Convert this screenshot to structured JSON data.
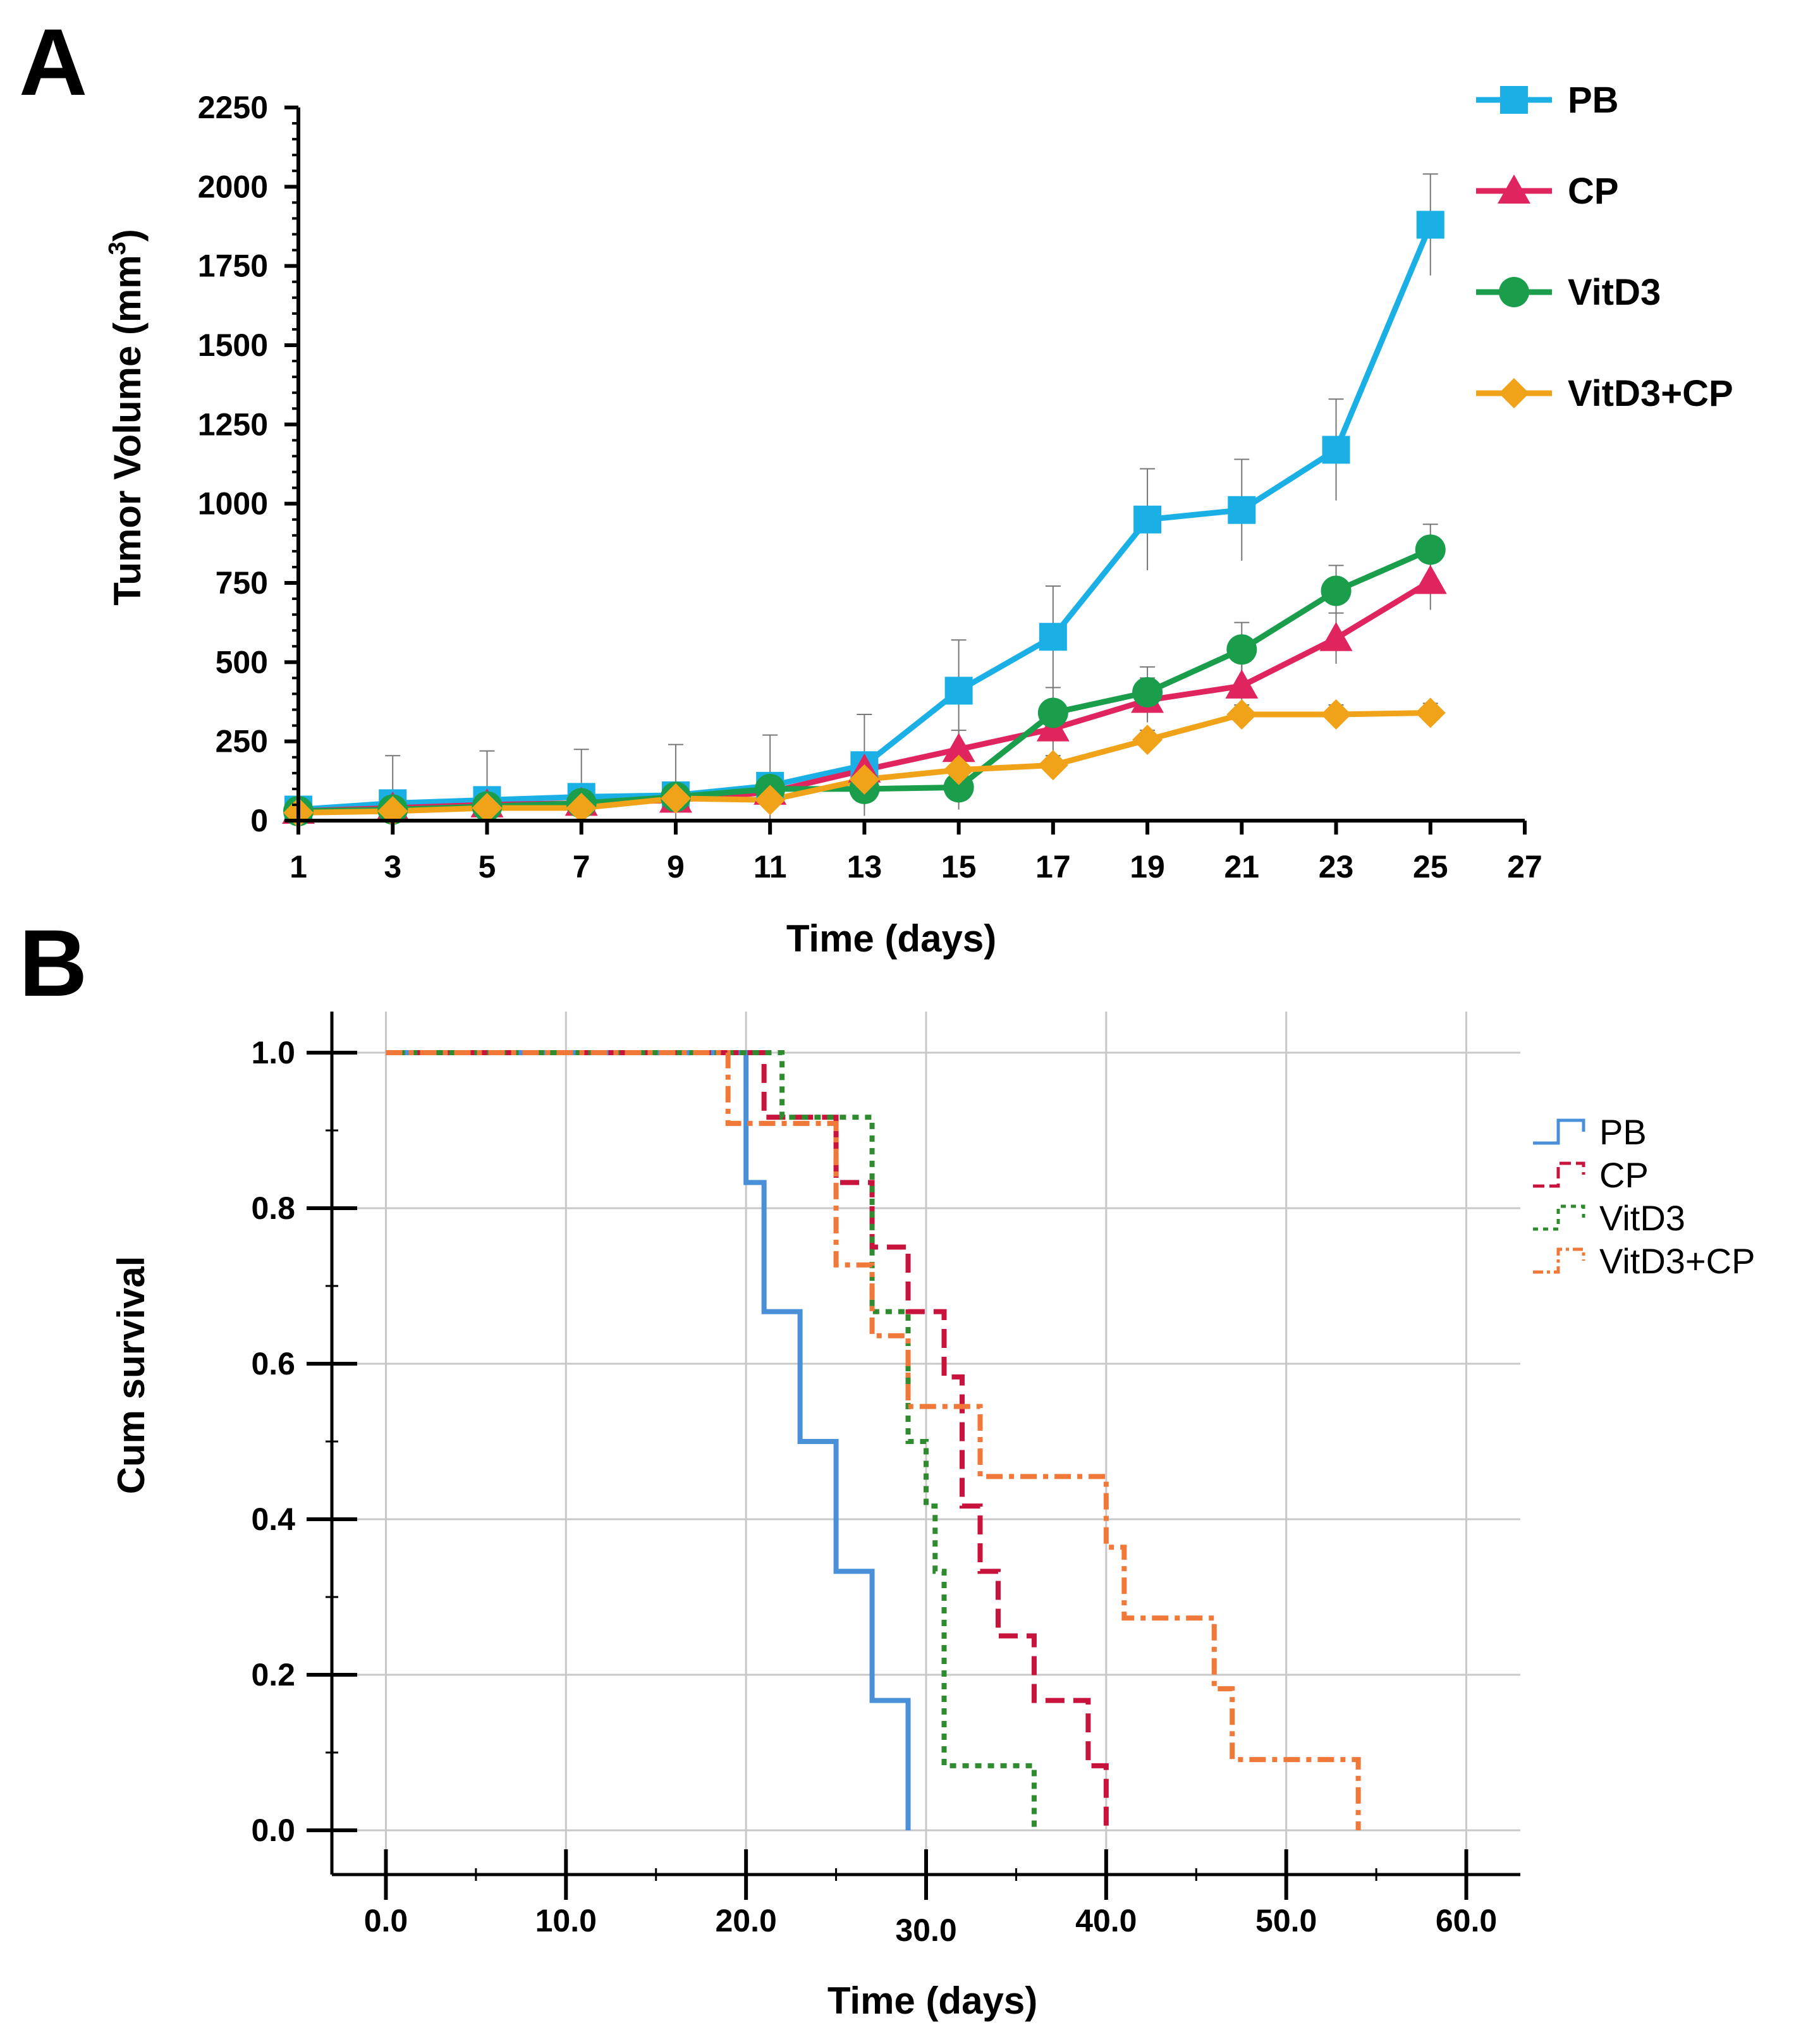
{
  "chart_data": [
    {
      "panel": "A",
      "type": "line",
      "ylabel": "Tumor Volume (mm",
      "ylabel_sup": "3",
      "ylabel_close": ")",
      "xlabel": "Time (days)",
      "ylim": [
        0,
        2250
      ],
      "xlim": [
        1,
        27
      ],
      "yticks": [
        0,
        250,
        500,
        750,
        1000,
        1250,
        1500,
        1750,
        2000,
        2250
      ],
      "xticks": [
        1,
        3,
        5,
        7,
        9,
        11,
        13,
        15,
        17,
        19,
        21,
        23,
        25,
        27
      ],
      "x": [
        1,
        3,
        5,
        7,
        9,
        11,
        13,
        15,
        17,
        19,
        21,
        23,
        25
      ],
      "series": [
        {
          "name": "PB",
          "color": "#1ab0e6",
          "marker": "square",
          "values": [
            35,
            55,
            65,
            75,
            80,
            110,
            175,
            410,
            580,
            950,
            980,
            1170,
            1880
          ],
          "errors": [
            10,
            150,
            155,
            150,
            160,
            160,
            160,
            160,
            160,
            160,
            160,
            160,
            160
          ]
        },
        {
          "name": "CP",
          "color": "#e0245e",
          "marker": "triangle",
          "values": [
            30,
            40,
            50,
            55,
            65,
            90,
            160,
            225,
            290,
            380,
            425,
            575,
            755
          ],
          "errors": [
            5,
            20,
            25,
            30,
            40,
            40,
            50,
            60,
            70,
            70,
            75,
            80,
            90
          ]
        },
        {
          "name": "VitD3",
          "color": "#1a9e4c",
          "marker": "circle",
          "values": [
            30,
            35,
            45,
            55,
            75,
            100,
            100,
            105,
            340,
            405,
            540,
            725,
            855
          ],
          "errors": [
            5,
            15,
            20,
            25,
            30,
            40,
            60,
            70,
            80,
            80,
            85,
            80,
            80
          ]
        },
        {
          "name": "VitD3+CP",
          "color": "#f0a318",
          "marker": "diamond",
          "values": [
            25,
            30,
            40,
            40,
            70,
            65,
            130,
            160,
            175,
            255,
            335,
            335,
            340
          ],
          "errors": [
            5,
            10,
            15,
            20,
            20,
            30,
            30,
            30,
            30,
            30,
            30,
            30,
            30
          ]
        }
      ]
    },
    {
      "panel": "B",
      "type": "line",
      "subtype": "kaplan-meier-step",
      "ylabel": "Cum survival",
      "xlabel": "Time (days)",
      "ylim": [
        0,
        1.0
      ],
      "xlim": [
        -3,
        63
      ],
      "yticks": [
        0.0,
        0.2,
        0.4,
        0.6,
        0.8,
        1.0
      ],
      "ytick_labels": [
        "0.0",
        "0.2",
        "0.4",
        "0.6",
        "0.8",
        "1.0"
      ],
      "xticks": [
        0,
        10,
        20,
        30,
        40,
        50,
        60
      ],
      "xtick_labels": [
        "0.0",
        "10.0",
        "20.0",
        "30.0",
        "40.0",
        "50.0",
        "60.0"
      ],
      "series": [
        {
          "name": "PB",
          "color": "#4a90d9",
          "dash": "solid",
          "steps": [
            [
              0,
              1.0
            ],
            [
              20,
              0.833
            ],
            [
              21,
              0.667
            ],
            [
              23,
              0.5
            ],
            [
              25,
              0.333
            ],
            [
              27,
              0.167
            ],
            [
              29,
              0.0
            ]
          ]
        },
        {
          "name": "CP",
          "color": "#c8143c",
          "dash": "dash",
          "steps": [
            [
              0,
              1.0
            ],
            [
              21,
              0.917
            ],
            [
              25,
              0.833
            ],
            [
              27,
              0.75
            ],
            [
              29,
              0.667
            ],
            [
              31,
              0.583
            ],
            [
              32,
              0.417
            ],
            [
              33,
              0.333
            ],
            [
              34,
              0.25
            ],
            [
              36,
              0.167
            ],
            [
              39,
              0.083
            ],
            [
              40,
              0.0
            ]
          ]
        },
        {
          "name": "VitD3",
          "color": "#2e8b2e",
          "dash": "dot",
          "steps": [
            [
              0,
              1.0
            ],
            [
              22,
              0.917
            ],
            [
              27,
              0.667
            ],
            [
              29,
              0.5
            ],
            [
              30,
              0.417
            ],
            [
              30.5,
              0.333
            ],
            [
              31,
              0.083
            ],
            [
              36,
              0.0
            ]
          ]
        },
        {
          "name": "VitD3+CP",
          "color": "#f07838",
          "dash": "dashdot",
          "steps": [
            [
              0,
              1.0
            ],
            [
              19,
              0.909
            ],
            [
              25,
              0.727
            ],
            [
              27,
              0.636
            ],
            [
              29,
              0.545
            ],
            [
              33,
              0.455
            ],
            [
              40,
              0.364
            ],
            [
              41,
              0.273
            ],
            [
              46,
              0.182
            ],
            [
              47,
              0.091
            ],
            [
              54,
              0.0
            ]
          ]
        }
      ]
    }
  ]
}
